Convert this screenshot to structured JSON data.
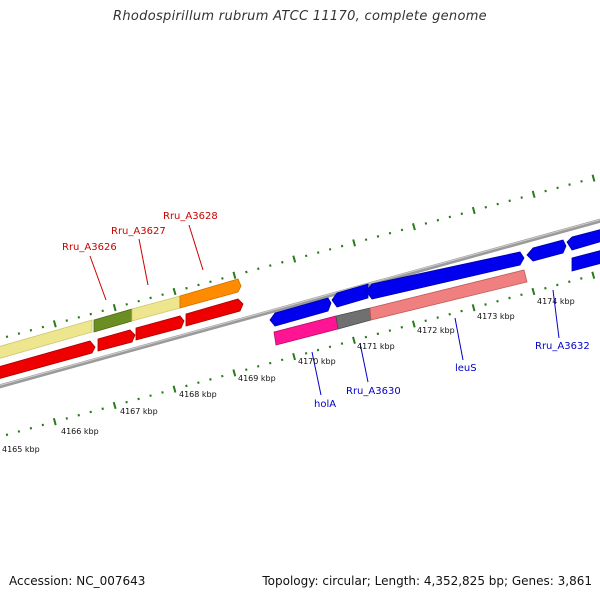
{
  "header": {
    "title": "Rhodospirillum rubrum ATCC 11170, complete genome"
  },
  "footer": {
    "accession": "Accession: NC_007643",
    "summary": "Topology: circular; Length: 4,352,825 bp; Genes: 3,861"
  },
  "colors": {
    "backbone": "#888888",
    "tick": "#2a7a1a",
    "label_red": "#cc0000",
    "label_blue": "#0000cc",
    "cds_forward": "#0000ee",
    "cds_reverse": "#ee0000",
    "khaki": "#eee68e",
    "olive": "#6b8e23",
    "orange": "#ff8c00",
    "magenta": "#ff1493",
    "grey": "#707070",
    "pink": "#f08080"
  },
  "scale_labels": [
    "4165 kbp",
    "4166 kbp",
    "4167 kbp",
    "4168 kbp",
    "4169 kbp",
    "4170 kbp",
    "4171 kbp",
    "4172 kbp",
    "4173 kbp",
    "4174 kbp"
  ],
  "gene_labels": [
    {
      "text": "Rru_A3626",
      "color": "red"
    },
    {
      "text": "Rru_A3627",
      "color": "red"
    },
    {
      "text": "Rru_A3628",
      "color": "red"
    },
    {
      "text": "holA",
      "color": "blue"
    },
    {
      "text": "Rru_A3630",
      "color": "blue"
    },
    {
      "text": "leuS",
      "color": "blue"
    },
    {
      "text": "Rru_A3632",
      "color": "blue"
    }
  ]
}
